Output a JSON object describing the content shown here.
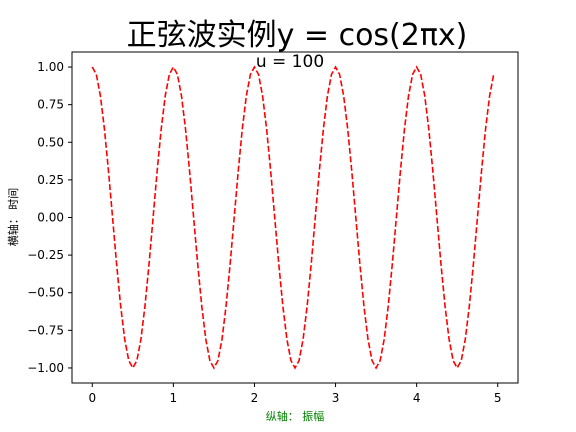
{
  "chart_data": {
    "type": "line",
    "title": "正弦波实例y = cos(2πx)",
    "annotation": "u = 100",
    "xlabel": "纵轴：  振幅",
    "ylabel": "横轴：  时间",
    "xlim": [
      -0.25,
      5.25
    ],
    "ylim": [
      -1.1,
      1.1
    ],
    "x_ticks": [
      "0",
      "1",
      "2",
      "3",
      "4",
      "5"
    ],
    "y_ticks": [
      "1.00",
      "0.75",
      "0.50",
      "0.25",
      "0.00",
      "−0.25",
      "−0.50",
      "−0.75",
      "−1.00"
    ],
    "grid": false,
    "series": [
      {
        "function": "cos(2πx)",
        "x_range": [
          0,
          4.95
        ],
        "points": 100,
        "color": "#ff0000",
        "line_style": "dashed"
      }
    ],
    "colors": {
      "xlabel": "#008000",
      "ylabel": "#000000"
    }
  }
}
